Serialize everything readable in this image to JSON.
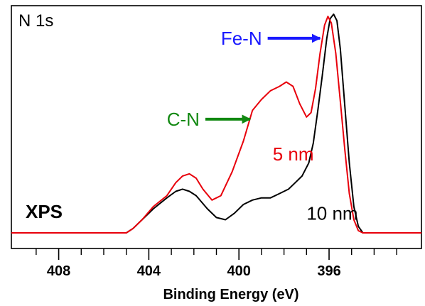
{
  "chart_data": {
    "type": "line",
    "panel_label": "N 1s",
    "method_label": "XPS",
    "xlabel": "Binding Energy (eV)",
    "ylabel": "",
    "x_reversed": true,
    "xlim": [
      410.1,
      391.9
    ],
    "ylim": [
      0,
      100
    ],
    "x_major_ticks": [
      408,
      404,
      400,
      396
    ],
    "x_minor_ticks": [
      409,
      407,
      406,
      405,
      403,
      402,
      401,
      399,
      398,
      397,
      395,
      394,
      393
    ],
    "grid": false,
    "series": [
      {
        "name": "5 nm",
        "color": "#e8000b",
        "points": [
          [
            410.1,
            0
          ],
          [
            406,
            0
          ],
          [
            405.0,
            0
          ],
          [
            404.7,
            2
          ],
          [
            404.3,
            6
          ],
          [
            403.8,
            12
          ],
          [
            403.2,
            17
          ],
          [
            402.8,
            23
          ],
          [
            402.5,
            26
          ],
          [
            402.2,
            27
          ],
          [
            401.9,
            25
          ],
          [
            401.6,
            20
          ],
          [
            401.2,
            15
          ],
          [
            400.8,
            17
          ],
          [
            400.3,
            28
          ],
          [
            399.8,
            42
          ],
          [
            399.4,
            56
          ],
          [
            399.0,
            61
          ],
          [
            398.6,
            65
          ],
          [
            398.2,
            67
          ],
          [
            397.9,
            69
          ],
          [
            397.6,
            67
          ],
          [
            397.3,
            59
          ],
          [
            397.0,
            53
          ],
          [
            396.8,
            55
          ],
          [
            396.6,
            66
          ],
          [
            396.4,
            82
          ],
          [
            396.2,
            95
          ],
          [
            396.05,
            99
          ],
          [
            395.9,
            96
          ],
          [
            395.7,
            82
          ],
          [
            395.5,
            60
          ],
          [
            395.3,
            38
          ],
          [
            395.1,
            18
          ],
          [
            394.9,
            6
          ],
          [
            394.7,
            1
          ],
          [
            394.5,
            0
          ],
          [
            391.9,
            0
          ]
        ]
      },
      {
        "name": "10 nm",
        "color": "#000000",
        "points": [
          [
            410.1,
            0
          ],
          [
            405.0,
            0
          ],
          [
            404.7,
            2
          ],
          [
            404.3,
            6
          ],
          [
            403.8,
            11
          ],
          [
            403.2,
            16
          ],
          [
            402.8,
            19
          ],
          [
            402.5,
            20
          ],
          [
            402.2,
            19
          ],
          [
            401.9,
            17
          ],
          [
            401.4,
            11
          ],
          [
            401.0,
            7
          ],
          [
            400.6,
            6
          ],
          [
            400.2,
            9
          ],
          [
            399.8,
            13
          ],
          [
            399.4,
            15
          ],
          [
            399.0,
            16
          ],
          [
            398.6,
            16
          ],
          [
            398.2,
            18
          ],
          [
            397.8,
            20
          ],
          [
            397.5,
            23
          ],
          [
            397.2,
            26
          ],
          [
            396.9,
            32
          ],
          [
            396.7,
            41
          ],
          [
            396.5,
            56
          ],
          [
            396.3,
            72
          ],
          [
            396.1,
            89
          ],
          [
            395.95,
            98
          ],
          [
            395.8,
            100
          ],
          [
            395.65,
            97
          ],
          [
            395.5,
            84
          ],
          [
            395.3,
            58
          ],
          [
            395.1,
            32
          ],
          [
            394.9,
            12
          ],
          [
            394.7,
            3
          ],
          [
            394.5,
            0
          ],
          [
            391.9,
            0
          ]
        ]
      }
    ],
    "annotations": [
      {
        "text": "Fe-N",
        "color": "#1a1aff",
        "label_x": 400.8,
        "label_y": 89,
        "arrow_to_x": 396.4,
        "arrow_to_y": 89
      },
      {
        "text": "C-N",
        "color": "#118811",
        "label_x": 403.2,
        "label_y": 52,
        "arrow_to_x": 399.5,
        "arrow_to_y": 52
      },
      {
        "text": "5 nm",
        "color": "#e8000b",
        "label_x": 398.5,
        "label_y": 36
      },
      {
        "text": "10 nm",
        "color": "#000000",
        "label_x": 397.0,
        "label_y": 9
      }
    ]
  }
}
